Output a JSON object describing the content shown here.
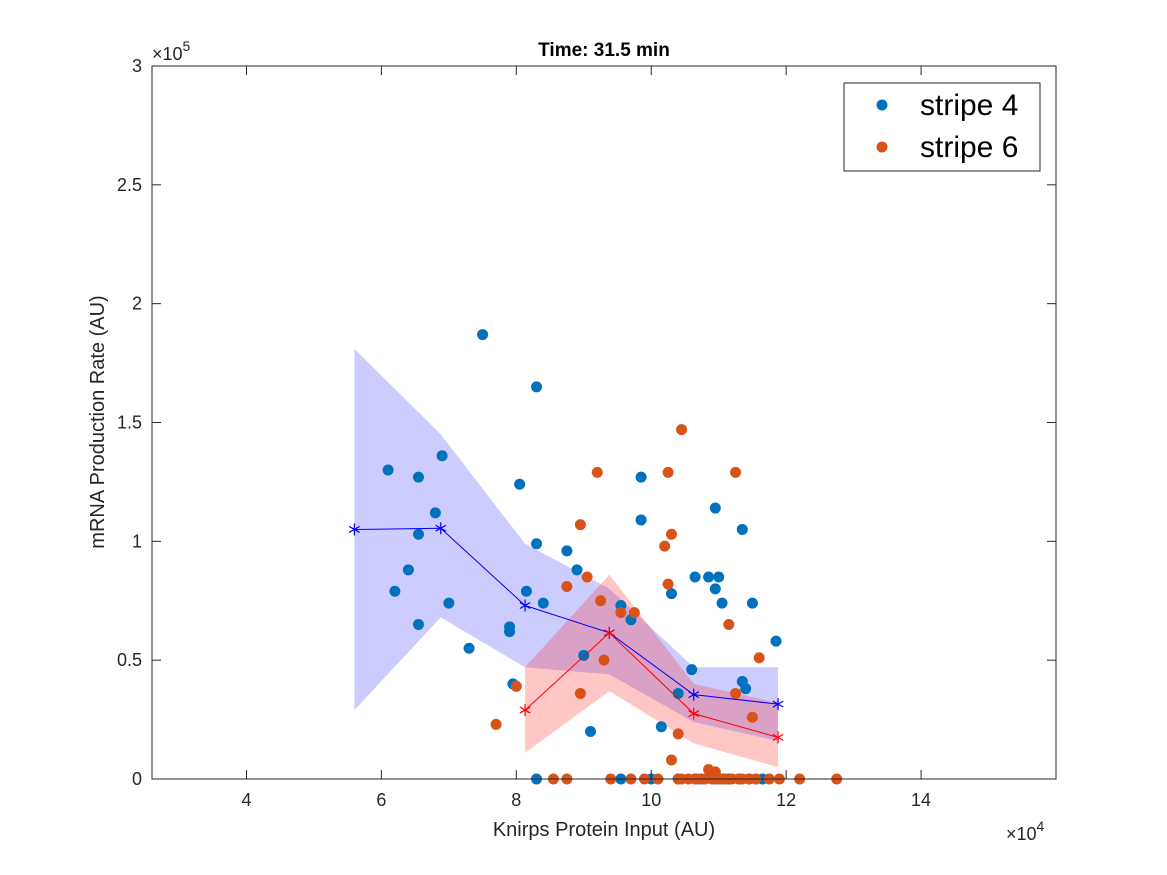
{
  "chart_data": {
    "type": "scatter",
    "title": "Time: 31.5 min",
    "xlabel": "Knirps Protein Input (AU)",
    "ylabel": "mRNA Production Rate (AU)",
    "xlim": [
      26000,
      160000
    ],
    "ylim": [
      0,
      300000
    ],
    "x_ticks": [
      40000,
      60000,
      80000,
      100000,
      120000,
      140000
    ],
    "x_tick_labels": [
      "4",
      "6",
      "8",
      "10",
      "12",
      "14"
    ],
    "y_ticks": [
      0,
      50000,
      100000,
      150000,
      200000,
      250000,
      300000
    ],
    "y_tick_labels": [
      "0",
      "0.5",
      "1",
      "1.5",
      "2",
      "2.5",
      "3"
    ],
    "x_exponent": {
      "base": "×10",
      "power": "4"
    },
    "y_exponent": {
      "base": "×10",
      "power": "5"
    },
    "grid": false,
    "legend": {
      "placement": "top-right",
      "entries": [
        "stripe 4",
        "stripe 6"
      ]
    },
    "series": [
      {
        "name": "stripe 4",
        "color": "#0072BD",
        "points": [
          [
            61000,
            130000
          ],
          [
            62000,
            79000
          ],
          [
            64000,
            88000
          ],
          [
            65500,
            127000
          ],
          [
            65500,
            103000
          ],
          [
            65500,
            65000
          ],
          [
            68000,
            112000
          ],
          [
            69000,
            136000
          ],
          [
            70000,
            74000
          ],
          [
            73000,
            55000
          ],
          [
            75000,
            187000
          ],
          [
            79000,
            62000
          ],
          [
            79000,
            64000
          ],
          [
            79500,
            40000
          ],
          [
            80500,
            124000
          ],
          [
            81500,
            79000
          ],
          [
            83000,
            99000
          ],
          [
            83000,
            165000
          ],
          [
            84000,
            74000
          ],
          [
            87500,
            96000
          ],
          [
            89000,
            88000
          ],
          [
            90000,
            52000
          ],
          [
            91000,
            20000
          ],
          [
            95500,
            73000
          ],
          [
            97000,
            67000
          ],
          [
            98500,
            127000
          ],
          [
            98500,
            109000
          ],
          [
            101500,
            22000
          ],
          [
            103000,
            78000
          ],
          [
            104000,
            36000
          ],
          [
            106000,
            46000
          ],
          [
            106500,
            85000
          ],
          [
            108500,
            85000
          ],
          [
            109500,
            114000
          ],
          [
            109500,
            80000
          ],
          [
            110000,
            85000
          ],
          [
            110500,
            74000
          ],
          [
            113500,
            105000
          ],
          [
            113500,
            41000
          ],
          [
            114000,
            38000
          ],
          [
            115000,
            74000
          ],
          [
            118500,
            58000
          ],
          [
            83000,
            0
          ],
          [
            95500,
            0
          ],
          [
            100000,
            0
          ],
          [
            104000,
            0
          ],
          [
            106500,
            0
          ],
          [
            107500,
            0
          ],
          [
            109500,
            0
          ],
          [
            110500,
            0
          ],
          [
            111500,
            0
          ],
          [
            113000,
            0
          ],
          [
            114500,
            0
          ],
          [
            115500,
            0
          ],
          [
            116500,
            0
          ]
        ]
      },
      {
        "name": "stripe 6",
        "color": "#D95319",
        "points": [
          [
            77000,
            23000
          ],
          [
            80000,
            39000
          ],
          [
            85500,
            0
          ],
          [
            87500,
            81000
          ],
          [
            87500,
            0
          ],
          [
            89500,
            107000
          ],
          [
            89500,
            36000
          ],
          [
            90500,
            85000
          ],
          [
            92000,
            129000
          ],
          [
            92500,
            75000
          ],
          [
            93000,
            50000
          ],
          [
            94000,
            0
          ],
          [
            95500,
            70000
          ],
          [
            97000,
            0
          ],
          [
            97500,
            70000
          ],
          [
            99000,
            0
          ],
          [
            101000,
            0
          ],
          [
            102000,
            98000
          ],
          [
            102500,
            82000
          ],
          [
            102500,
            129000
          ],
          [
            103000,
            103000
          ],
          [
            103000,
            8000
          ],
          [
            104000,
            0
          ],
          [
            104000,
            19000
          ],
          [
            104500,
            147000
          ],
          [
            104500,
            0
          ],
          [
            105500,
            0
          ],
          [
            106500,
            0
          ],
          [
            107000,
            0
          ],
          [
            108000,
            0
          ],
          [
            108500,
            4000
          ],
          [
            109000,
            0
          ],
          [
            109500,
            3000
          ],
          [
            110000,
            0
          ],
          [
            110500,
            0
          ],
          [
            111000,
            0
          ],
          [
            111500,
            65000
          ],
          [
            112000,
            0
          ],
          [
            112500,
            129000
          ],
          [
            112500,
            36000
          ],
          [
            113000,
            0
          ],
          [
            113500,
            0
          ],
          [
            114500,
            0
          ],
          [
            115000,
            26000
          ],
          [
            115500,
            0
          ],
          [
            116000,
            51000
          ],
          [
            117500,
            0
          ],
          [
            119000,
            0
          ],
          [
            122000,
            0
          ],
          [
            127500,
            0
          ]
        ]
      }
    ],
    "binned_means": [
      {
        "color": "#0000FF",
        "fill": "#3333FF",
        "points": [
          [
            56000,
            105000
          ],
          [
            68800,
            105500
          ],
          [
            81300,
            73000
          ],
          [
            93800,
            61500
          ],
          [
            106300,
            35500
          ],
          [
            118800,
            31500
          ]
        ],
        "upper": [
          181000,
          145000,
          99000,
          80000,
          47000,
          47000
        ],
        "lower": [
          29000,
          68000,
          47000,
          44000,
          24000,
          16000
        ]
      },
      {
        "color": "#FF0000",
        "fill": "#FF3333",
        "points": [
          [
            81300,
            29000
          ],
          [
            93800,
            61500
          ],
          [
            106300,
            27500
          ],
          [
            118800,
            17500
          ]
        ],
        "upper": [
          47000,
          86000,
          40000,
          32000
        ],
        "lower": [
          11000,
          37000,
          15000,
          5000
        ]
      }
    ]
  }
}
